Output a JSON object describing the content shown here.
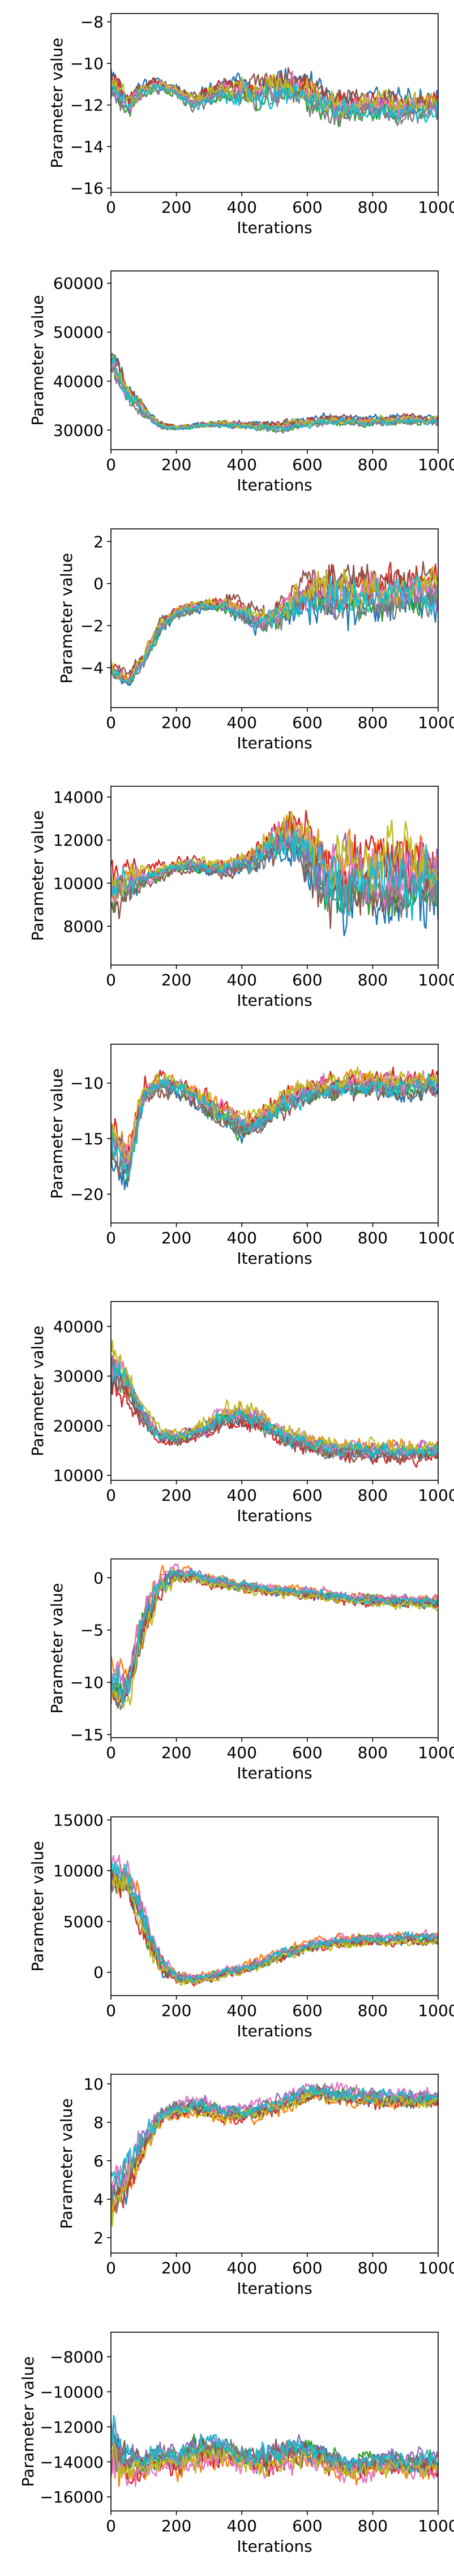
{
  "figure": {
    "colors": [
      "#1f77b4",
      "#ff7f0e",
      "#2ca02c",
      "#d62728",
      "#9467bd",
      "#8c564b",
      "#e377c2",
      "#7f7f7f",
      "#bcbd22",
      "#17becf"
    ]
  },
  "chart_data": [
    {
      "type": "line",
      "xlabel": "Iterations",
      "ylabel": "Parameter value",
      "xlim": [
        0,
        1000
      ],
      "ylim": [
        -16.2,
        -7.6
      ],
      "xticks": [
        "0",
        "200",
        "400",
        "600",
        "800",
        "1000"
      ],
      "yticks": [
        "-16",
        "-14",
        "-12",
        "-10",
        "-8"
      ],
      "ytick_values": [
        -16,
        -14,
        -12,
        -10,
        -8
      ],
      "n_series": 10,
      "x": [
        0,
        50,
        100,
        150,
        200,
        250,
        300,
        350,
        400,
        450,
        500,
        550,
        600,
        650,
        700,
        750,
        800,
        850,
        900,
        950,
        1000
      ],
      "mean": [
        -11.0,
        -11.8,
        -11.2,
        -11.0,
        -11.3,
        -11.8,
        -11.5,
        -11.2,
        -11.3,
        -11.4,
        -11.2,
        -11.0,
        -11.3,
        -11.8,
        -12.0,
        -12.0,
        -11.9,
        -12.0,
        -12.1,
        -12.0,
        -11.9
      ],
      "spread": [
        1.8,
        1.4,
        1.0,
        0.9,
        0.8,
        1.0,
        1.2,
        1.4,
        1.6,
        1.8,
        2.0,
        2.0,
        2.0,
        1.8,
        1.8,
        1.6,
        1.6,
        1.6,
        1.6,
        1.6,
        1.6
      ]
    },
    {
      "type": "line",
      "xlabel": "Iterations",
      "ylabel": "Parameter value",
      "xlim": [
        0,
        1000
      ],
      "ylim": [
        26000,
        62500
      ],
      "xticks": [
        "0",
        "200",
        "400",
        "600",
        "800",
        "1000"
      ],
      "yticks": [
        "30000",
        "40000",
        "50000",
        "60000"
      ],
      "ytick_values": [
        30000,
        40000,
        50000,
        60000
      ],
      "n_series": 10,
      "x": [
        0,
        50,
        100,
        150,
        200,
        250,
        300,
        350,
        400,
        450,
        500,
        550,
        600,
        650,
        700,
        750,
        800,
        850,
        900,
        950,
        1000
      ],
      "mean": [
        44000,
        38000,
        34000,
        31000,
        30500,
        30800,
        31200,
        31300,
        31000,
        30800,
        30500,
        31000,
        31500,
        32000,
        32000,
        31800,
        31800,
        32000,
        32200,
        32000,
        32000
      ],
      "spread": [
        9000,
        5000,
        3000,
        1500,
        1200,
        1200,
        1500,
        1800,
        2000,
        2200,
        2500,
        2500,
        2500,
        2500,
        2500,
        2500,
        2500,
        2500,
        2500,
        2500,
        2500
      ]
    },
    {
      "type": "line",
      "xlabel": "Iterations",
      "ylabel": "Parameter value",
      "xlim": [
        0,
        1000
      ],
      "ylim": [
        -5.9,
        2.6
      ],
      "xticks": [
        "0",
        "200",
        "400",
        "600",
        "800",
        "1000"
      ],
      "yticks": [
        "-4",
        "-2",
        "0",
        "2"
      ],
      "ytick_values": [
        -4,
        -2,
        0,
        2
      ],
      "n_series": 10,
      "x": [
        0,
        50,
        100,
        150,
        200,
        250,
        300,
        350,
        400,
        450,
        500,
        550,
        600,
        650,
        700,
        750,
        800,
        850,
        900,
        950,
        1000
      ],
      "mean": [
        -4.0,
        -4.6,
        -3.6,
        -2.0,
        -1.4,
        -1.1,
        -1.0,
        -1.0,
        -1.3,
        -1.8,
        -1.5,
        -1.1,
        -0.6,
        -0.5,
        -0.4,
        -0.4,
        -0.4,
        -0.5,
        -0.3,
        -0.3,
        -0.4
      ],
      "spread": [
        1.0,
        0.8,
        1.0,
        1.0,
        0.8,
        0.7,
        0.7,
        0.9,
        1.2,
        1.4,
        1.6,
        2.0,
        2.6,
        3.0,
        3.0,
        3.0,
        2.8,
        2.8,
        2.8,
        2.8,
        2.8
      ]
    },
    {
      "type": "line",
      "xlabel": "Iterations",
      "ylabel": "Parameter value",
      "xlim": [
        0,
        1000
      ],
      "ylim": [
        6200,
        14500
      ],
      "xticks": [
        "0",
        "200",
        "400",
        "600",
        "800",
        "1000"
      ],
      "yticks": [
        "8000",
        "10000",
        "12000",
        "14000"
      ],
      "ytick_values": [
        8000,
        10000,
        12000,
        14000
      ],
      "n_series": 10,
      "x": [
        0,
        50,
        100,
        150,
        200,
        250,
        300,
        350,
        400,
        450,
        500,
        550,
        600,
        650,
        700,
        750,
        800,
        850,
        900,
        950,
        1000
      ],
      "mean": [
        9800,
        10000,
        10300,
        10500,
        10800,
        10900,
        10700,
        10700,
        10900,
        11300,
        12000,
        12200,
        11500,
        10500,
        10200,
        10400,
        10300,
        10200,
        10300,
        10400,
        10300
      ],
      "spread": [
        3000,
        2000,
        1200,
        1000,
        900,
        800,
        900,
        1000,
        1200,
        1800,
        2500,
        2800,
        3500,
        4500,
        4800,
        4600,
        4600,
        4600,
        4600,
        4600,
        4600
      ]
    },
    {
      "type": "line",
      "xlabel": "Iterations",
      "ylabel": "Parameter value",
      "xlim": [
        0,
        1000
      ],
      "ylim": [
        -22.6,
        -6.5
      ],
      "xticks": [
        "0",
        "200",
        "400",
        "600",
        "800",
        "1000"
      ],
      "yticks": [
        "-20",
        "-15",
        "-10"
      ],
      "ytick_values": [
        -20,
        -15,
        -10
      ],
      "n_series": 10,
      "x": [
        0,
        50,
        100,
        150,
        200,
        250,
        300,
        350,
        400,
        450,
        500,
        550,
        600,
        650,
        700,
        750,
        800,
        850,
        900,
        950,
        1000
      ],
      "mean": [
        -15.0,
        -17.5,
        -11.0,
        -10.0,
        -10.3,
        -11.0,
        -12.0,
        -13.0,
        -14.0,
        -13.5,
        -12.5,
        -11.5,
        -11.0,
        -10.5,
        -10.3,
        -10.2,
        -10.2,
        -10.3,
        -10.2,
        -10.1,
        -10.2
      ],
      "spread": [
        6.0,
        5.0,
        3.5,
        2.5,
        2.5,
        2.5,
        2.8,
        3.0,
        3.0,
        3.0,
        3.0,
        3.0,
        3.0,
        3.0,
        3.0,
        3.0,
        3.0,
        3.0,
        3.0,
        3.0,
        3.0
      ]
    },
    {
      "type": "line",
      "xlabel": "Iterations",
      "ylabel": "Parameter value",
      "xlim": [
        0,
        1000
      ],
      "ylim": [
        9000,
        45000
      ],
      "xticks": [
        "0",
        "200",
        "400",
        "600",
        "800",
        "1000"
      ],
      "yticks": [
        "10000",
        "20000",
        "30000",
        "40000"
      ],
      "ytick_values": [
        10000,
        20000,
        30000,
        40000
      ],
      "n_series": 10,
      "x": [
        0,
        50,
        100,
        150,
        200,
        250,
        300,
        350,
        400,
        450,
        500,
        550,
        600,
        650,
        700,
        750,
        800,
        850,
        900,
        950,
        1000
      ],
      "mean": [
        32000,
        28000,
        22000,
        18000,
        17500,
        18500,
        20000,
        21500,
        22500,
        21000,
        19000,
        17500,
        16500,
        15500,
        15000,
        15000,
        15000,
        14800,
        14800,
        15000,
        15000
      ],
      "spread": [
        12000,
        9000,
        6000,
        4000,
        3500,
        4000,
        5000,
        6000,
        6000,
        6000,
        5000,
        5000,
        5000,
        5000,
        5000,
        5000,
        5000,
        5000,
        5000,
        5000,
        5000
      ]
    },
    {
      "type": "line",
      "xlabel": "Iterations",
      "ylabel": "Parameter value",
      "xlim": [
        0,
        1000
      ],
      "ylim": [
        -15.3,
        1.8
      ],
      "xticks": [
        "0",
        "200",
        "400",
        "600",
        "800",
        "1000"
      ],
      "yticks": [
        "-15",
        "-10",
        "-5",
        "0"
      ],
      "ytick_values": [
        -15,
        -10,
        -5,
        0
      ],
      "n_series": 10,
      "x": [
        0,
        50,
        100,
        150,
        200,
        250,
        300,
        350,
        400,
        450,
        500,
        550,
        600,
        650,
        700,
        750,
        800,
        850,
        900,
        950,
        1000
      ],
      "mean": [
        -10.0,
        -10.5,
        -4.0,
        -0.5,
        0.3,
        0.2,
        -0.2,
        -0.5,
        -0.8,
        -1.0,
        -1.2,
        -1.3,
        -1.4,
        -1.6,
        -1.8,
        -2.0,
        -2.1,
        -2.2,
        -2.2,
        -2.3,
        -2.3
      ],
      "spread": [
        6.0,
        5.0,
        5.0,
        3.0,
        2.0,
        1.6,
        1.5,
        1.5,
        1.5,
        1.5,
        1.4,
        1.4,
        1.4,
        1.4,
        1.4,
        1.4,
        1.4,
        1.4,
        1.4,
        1.4,
        1.4
      ]
    },
    {
      "type": "line",
      "xlabel": "Iterations",
      "ylabel": "Parameter value",
      "xlim": [
        0,
        1000
      ],
      "ylim": [
        -2300,
        15300
      ],
      "xticks": [
        "0",
        "200",
        "400",
        "600",
        "800",
        "1000"
      ],
      "yticks": [
        "0",
        "5000",
        "10000",
        "15000"
      ],
      "ytick_values": [
        0,
        5000,
        10000,
        15000
      ],
      "n_series": 10,
      "x": [
        0,
        50,
        100,
        150,
        200,
        250,
        300,
        350,
        400,
        450,
        500,
        550,
        600,
        650,
        700,
        750,
        800,
        850,
        900,
        950,
        1000
      ],
      "mean": [
        9500,
        9000,
        5000,
        1000,
        -500,
        -800,
        -500,
        0,
        300,
        800,
        1500,
        2000,
        2500,
        2800,
        3000,
        3100,
        3200,
        3200,
        3300,
        3300,
        3300
      ],
      "spread": [
        5000,
        4000,
        5000,
        3000,
        1500,
        1200,
        1200,
        1300,
        1400,
        1500,
        1500,
        1500,
        1500,
        1500,
        1500,
        1500,
        1500,
        1500,
        1500,
        1500,
        1500
      ]
    },
    {
      "type": "line",
      "xlabel": "Iterations",
      "ylabel": "Parameter value",
      "xlim": [
        0,
        1000
      ],
      "ylim": [
        1.2,
        10.5
      ],
      "xticks": [
        "0",
        "200",
        "400",
        "600",
        "800",
        "1000"
      ],
      "yticks": [
        "2",
        "4",
        "6",
        "8",
        "10"
      ],
      "ytick_values": [
        2,
        4,
        6,
        8,
        10
      ],
      "n_series": 10,
      "x": [
        0,
        50,
        100,
        150,
        200,
        250,
        300,
        350,
        400,
        450,
        500,
        550,
        600,
        650,
        700,
        750,
        800,
        850,
        900,
        950,
        1000
      ],
      "mean": [
        4.0,
        5.0,
        7.0,
        8.3,
        8.6,
        8.8,
        8.7,
        8.4,
        8.5,
        8.6,
        8.8,
        9.2,
        9.5,
        9.6,
        9.4,
        9.3,
        9.3,
        9.2,
        9.2,
        9.2,
        9.2
      ],
      "spread": [
        4.0,
        3.0,
        2.0,
        1.2,
        1.2,
        1.2,
        1.2,
        1.2,
        1.2,
        1.2,
        1.2,
        1.2,
        1.2,
        1.2,
        1.2,
        1.2,
        1.2,
        1.2,
        1.2,
        1.2,
        1.2
      ]
    },
    {
      "type": "line",
      "xlabel": "Iterations",
      "ylabel": "Parameter value",
      "xlim": [
        0,
        1000
      ],
      "ylim": [
        -16800,
        -6600
      ],
      "xticks": [
        "0",
        "200",
        "400",
        "600",
        "800",
        "1000"
      ],
      "yticks": [
        "-16000",
        "-14000",
        "-12000",
        "-10000",
        "-8000"
      ],
      "ytick_values": [
        -16000,
        -14000,
        -12000,
        -10000,
        -8000
      ],
      "n_series": 10,
      "x": [
        0,
        50,
        100,
        150,
        200,
        250,
        300,
        350,
        400,
        450,
        500,
        550,
        600,
        650,
        700,
        750,
        800,
        850,
        900,
        950,
        1000
      ],
      "mean": [
        -13500,
        -14000,
        -14200,
        -13800,
        -14000,
        -13600,
        -13200,
        -13400,
        -13800,
        -14000,
        -13600,
        -13400,
        -13300,
        -13800,
        -14200,
        -14300,
        -14200,
        -14000,
        -14100,
        -14100,
        -14100
      ],
      "spread": [
        5000,
        3000,
        2200,
        2000,
        2000,
        2500,
        2500,
        2200,
        2000,
        2000,
        2200,
        2200,
        2200,
        2000,
        1800,
        1800,
        1800,
        1800,
        1800,
        1800,
        1800
      ]
    }
  ]
}
